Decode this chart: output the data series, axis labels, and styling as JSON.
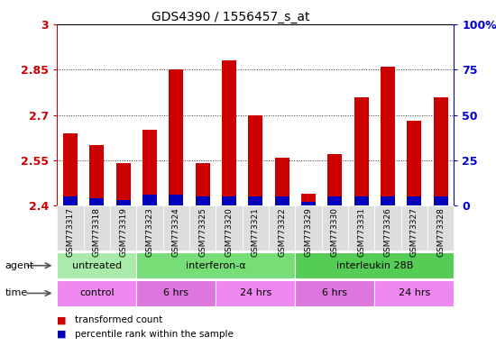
{
  "title": "GDS4390 / 1556457_s_at",
  "samples": [
    "GSM773317",
    "GSM773318",
    "GSM773319",
    "GSM773323",
    "GSM773324",
    "GSM773325",
    "GSM773320",
    "GSM773321",
    "GSM773322",
    "GSM773329",
    "GSM773330",
    "GSM773331",
    "GSM773326",
    "GSM773327",
    "GSM773328"
  ],
  "transformed_count": [
    2.64,
    2.6,
    2.54,
    2.65,
    2.85,
    2.54,
    2.88,
    2.7,
    2.56,
    2.44,
    2.57,
    2.76,
    2.86,
    2.68,
    2.76
  ],
  "percentile_rank": [
    5,
    4,
    3,
    6,
    6,
    5,
    5,
    5,
    5,
    2,
    5,
    5,
    5,
    5,
    5
  ],
  "y_min": 2.4,
  "y_max": 3.0,
  "y_ticks": [
    2.4,
    2.55,
    2.7,
    2.85,
    3.0
  ],
  "y_tick_labels": [
    "2.4",
    "2.55",
    "2.7",
    "2.85",
    "3"
  ],
  "y2_ticks_pct": [
    0,
    25,
    50,
    75,
    100
  ],
  "y2_tick_labels": [
    "0",
    "25",
    "50",
    "75",
    "100%"
  ],
  "bar_bottom": 2.4,
  "red_color": "#cc0000",
  "blue_color": "#0000bb",
  "agent_groups": [
    {
      "label": "untreated",
      "start": 0,
      "end": 3,
      "color": "#aaeaaa"
    },
    {
      "label": "interferon-α",
      "start": 3,
      "end": 9,
      "color": "#77dd77"
    },
    {
      "label": "interleukin 28B",
      "start": 9,
      "end": 15,
      "color": "#55cc55"
    }
  ],
  "time_groups": [
    {
      "label": "control",
      "start": 0,
      "end": 3,
      "color": "#ee88ee"
    },
    {
      "label": "6 hrs",
      "start": 3,
      "end": 6,
      "color": "#dd77dd"
    },
    {
      "label": "24 hrs",
      "start": 6,
      "end": 9,
      "color": "#ee88ee"
    },
    {
      "label": "6 hrs",
      "start": 9,
      "end": 12,
      "color": "#dd77dd"
    },
    {
      "label": "24 hrs",
      "start": 12,
      "end": 15,
      "color": "#ee88ee"
    }
  ],
  "plot_bg": "#ffffff",
  "tick_color_left": "#cc0000",
  "tick_color_right": "#0000cc",
  "bar_width": 0.55,
  "legend_red": "transformed count",
  "legend_blue": "percentile rank within the sample",
  "xticklabel_bg": "#dddddd"
}
